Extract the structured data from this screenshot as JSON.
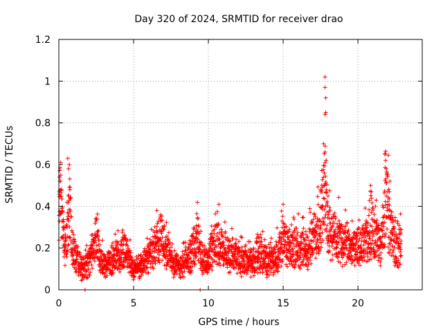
{
  "chart_data": {
    "type": "scatter",
    "title": "Day 320 of 2024, SRMTID for receiver drao",
    "xlabel": "GPS time / hours",
    "ylabel": "SRMTID / TECUs",
    "xlim": [
      0,
      24.3
    ],
    "ylim": [
      0,
      1.2
    ],
    "xticks": [
      0,
      5,
      10,
      15,
      20
    ],
    "xtick_labels": [
      "0",
      "5",
      "10",
      "15",
      "20"
    ],
    "yticks": [
      0,
      0.2,
      0.4,
      0.6,
      0.8,
      1,
      1.2
    ],
    "ytick_labels": [
      "0",
      "0.2",
      "0.4",
      "0.6",
      "0.8",
      "1",
      "1.2"
    ],
    "grid": true,
    "marker": "plus",
    "series": [
      {
        "name": "SRMTID",
        "color": "#ff0000",
        "profile": [
          [
            0.0,
            0.42
          ],
          [
            0.1,
            0.5
          ],
          [
            0.25,
            0.3
          ],
          [
            0.5,
            0.22
          ],
          [
            0.75,
            0.45
          ],
          [
            0.9,
            0.22
          ],
          [
            1.2,
            0.15
          ],
          [
            1.6,
            0.1
          ],
          [
            2.0,
            0.14
          ],
          [
            2.5,
            0.26
          ],
          [
            3.0,
            0.12
          ],
          [
            3.5,
            0.14
          ],
          [
            4.0,
            0.18
          ],
          [
            4.5,
            0.2
          ],
          [
            5.0,
            0.1
          ],
          [
            5.5,
            0.13
          ],
          [
            6.0,
            0.16
          ],
          [
            6.5,
            0.24
          ],
          [
            6.8,
            0.28
          ],
          [
            7.2,
            0.2
          ],
          [
            7.6,
            0.15
          ],
          [
            8.0,
            0.12
          ],
          [
            8.5,
            0.14
          ],
          [
            9.0,
            0.2
          ],
          [
            9.3,
            0.26
          ],
          [
            9.6,
            0.14
          ],
          [
            10.0,
            0.16
          ],
          [
            10.5,
            0.25
          ],
          [
            11.0,
            0.2
          ],
          [
            11.5,
            0.18
          ],
          [
            12.0,
            0.16
          ],
          [
            12.5,
            0.15
          ],
          [
            13.0,
            0.14
          ],
          [
            13.5,
            0.18
          ],
          [
            14.0,
            0.14
          ],
          [
            14.5,
            0.16
          ],
          [
            15.0,
            0.25
          ],
          [
            15.5,
            0.2
          ],
          [
            16.0,
            0.22
          ],
          [
            16.5,
            0.2
          ],
          [
            17.0,
            0.26
          ],
          [
            17.5,
            0.36
          ],
          [
            17.75,
            0.5
          ],
          [
            17.85,
            0.45
          ],
          [
            18.0,
            0.3
          ],
          [
            18.5,
            0.28
          ],
          [
            19.0,
            0.24
          ],
          [
            19.5,
            0.22
          ],
          [
            20.0,
            0.2
          ],
          [
            20.5,
            0.24
          ],
          [
            21.0,
            0.3
          ],
          [
            21.5,
            0.22
          ],
          [
            21.9,
            0.45
          ],
          [
            22.2,
            0.3
          ],
          [
            22.5,
            0.2
          ],
          [
            22.9,
            0.22
          ]
        ],
        "highlights": [
          [
            17.8,
            1.02
          ],
          [
            17.8,
            0.97
          ],
          [
            17.85,
            0.92
          ],
          [
            17.8,
            0.84
          ],
          [
            17.85,
            0.85
          ],
          [
            17.7,
            0.7
          ],
          [
            17.8,
            0.66
          ],
          [
            17.8,
            0.61
          ],
          [
            17.75,
            0.56
          ],
          [
            17.9,
            0.48
          ],
          [
            17.5,
            0.48
          ],
          [
            18.0,
            0.45
          ],
          [
            0.6,
            0.63
          ],
          [
            0.65,
            0.58
          ],
          [
            0.7,
            0.6
          ],
          [
            21.8,
            0.65
          ],
          [
            21.85,
            0.62
          ],
          [
            21.9,
            0.58
          ],
          [
            21.95,
            0.55
          ],
          [
            22.1,
            0.47
          ],
          [
            20.85,
            0.5
          ],
          [
            20.9,
            0.47
          ],
          [
            0.05,
            0.54
          ],
          [
            0.1,
            0.52
          ],
          [
            10.7,
            0.41
          ],
          [
            6.55,
            0.38
          ],
          [
            15.0,
            0.41
          ],
          [
            1.75,
            0.0
          ],
          [
            9.45,
            0.0
          ]
        ]
      }
    ]
  }
}
